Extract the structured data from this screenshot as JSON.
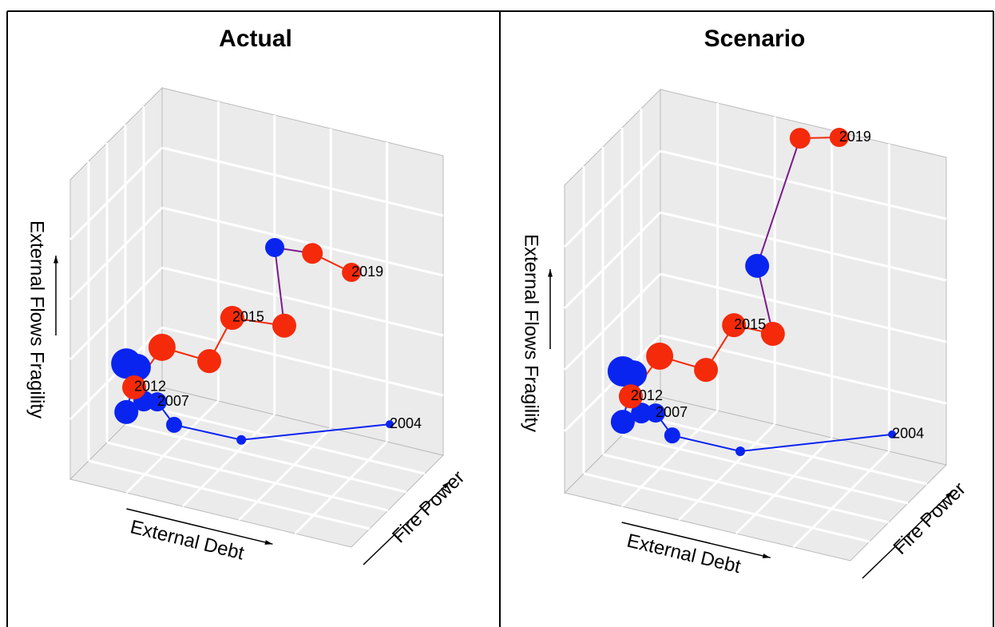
{
  "chart_data": [
    {
      "type": "scatter3d",
      "title": "Actual",
      "xlabel": "External Debt",
      "ylabel": "External Flows Fragility",
      "zlabel": "Fire Power",
      "x": [
        0.973,
        0.445,
        0.206,
        0.146,
        0.098,
        0.036,
        0.075,
        0.036,
        0.064,
        0.163,
        0.331,
        0.413,
        0.598,
        0.564,
        0.698,
        0.837
      ],
      "y": [
        0.251,
        0.079,
        0.075,
        0.138,
        0.13,
        0.079,
        0.237,
        0.241,
        0.168,
        0.324,
        0.316,
        0.479,
        0.495,
        0.748,
        0.759,
        0.727
      ],
      "sizes": [
        5,
        6,
        10,
        12,
        13,
        15,
        17,
        19,
        15,
        17,
        15,
        15,
        15,
        12,
        13,
        12
      ],
      "colors": [
        "#0a24f0",
        "#0a24f0",
        "#0a24f0",
        "#0a24f0",
        "#0a24f0",
        "#0a24f0",
        "#0a24f0",
        "#0a24f0",
        "#f42a0a",
        "#f42a0a",
        "#f42a0a",
        "#f42a0a",
        "#f42a0a",
        "#0a24f0",
        "#f42a0a",
        "#f42a0a"
      ],
      "point_labels": [
        "2004",
        null,
        null,
        "2007",
        null,
        null,
        null,
        null,
        "2012",
        null,
        null,
        "2015",
        null,
        null,
        null,
        "2019"
      ]
    },
    {
      "type": "scatter3d",
      "title": "Scenario",
      "xlabel": "External Debt",
      "ylabel": "External Flows Fragility",
      "zlabel": "Fire Power",
      "x": [
        0.978,
        0.447,
        0.209,
        0.151,
        0.101,
        0.036,
        0.073,
        0.036,
        0.064,
        0.165,
        0.327,
        0.425,
        0.561,
        0.506,
        0.656,
        0.793
      ],
      "y": [
        0.25,
        0.078,
        0.077,
        0.137,
        0.126,
        0.083,
        0.247,
        0.247,
        0.172,
        0.325,
        0.316,
        0.483,
        0.485,
        0.694,
        1.142,
        1.175
      ],
      "sizes": [
        5,
        6,
        10,
        12,
        13,
        15,
        17,
        19,
        15,
        17,
        15,
        15,
        15,
        15,
        13,
        12
      ],
      "colors": [
        "#0a24f0",
        "#0a24f0",
        "#0a24f0",
        "#0a24f0",
        "#0a24f0",
        "#0a24f0",
        "#0a24f0",
        "#0a24f0",
        "#f42a0a",
        "#f42a0a",
        "#f42a0a",
        "#f42a0a",
        "#f42a0a",
        "#0a24f0",
        "#f42a0a",
        "#f42a0a"
      ],
      "point_labels": [
        "2004",
        null,
        null,
        "2007",
        null,
        null,
        null,
        null,
        "2012",
        null,
        null,
        "2015",
        null,
        null,
        null,
        "2019"
      ]
    }
  ]
}
